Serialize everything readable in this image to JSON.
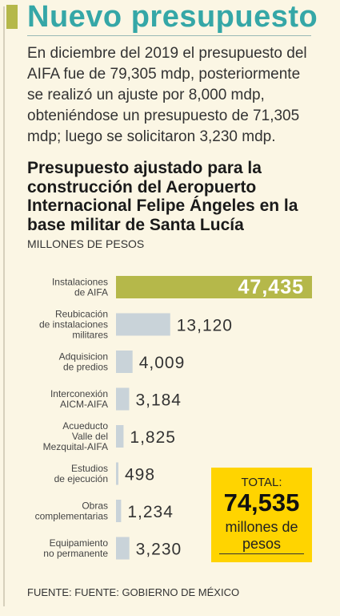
{
  "header": {
    "title": "Nuevo presupuesto",
    "intro": "En diciembre del 2019 el presupuesto del AIFA fue de 79,305 mdp, posteriormente se realizó un ajuste por 8,000 mdp, obteniéndose un presupuesto de 71,305 mdp; luego se solicitaron 3,230 mdp."
  },
  "colors": {
    "accent_green": "#b5b84a",
    "headline_teal": "#35a7a7",
    "bar_gray": "#c9d3d9",
    "total_yellow": "#ffd400"
  },
  "chart_data": {
    "type": "bar",
    "orientation": "horizontal",
    "title": "Presupuesto ajustado para la construcción del Aeropuerto Internacional Felipe Ángeles en la base militar de Santa Lucía",
    "units": "MILLONES DE PESOS",
    "categories": [
      [
        "Instalaciones",
        "de AIFA"
      ],
      [
        "Reubicación",
        "de instalaciones",
        "militares"
      ],
      [
        "Adquisicion",
        "de predios"
      ],
      [
        "Interconexión",
        "AICM-AIFA"
      ],
      [
        "Acueducto",
        "Valle del",
        "Mezquital-AIFA"
      ],
      [
        "Estudios",
        "de ejecución"
      ],
      [
        "Obras",
        "complementarias"
      ],
      [
        "Equipamiento",
        "no permanente"
      ]
    ],
    "values": [
      47435,
      13120,
      4009,
      3184,
      1825,
      498,
      1234,
      3230
    ],
    "value_labels": [
      "47,435",
      "13,120",
      "4,009",
      "3,184",
      "1,825",
      "498",
      "1,234",
      "3,230"
    ]
  },
  "total": {
    "label": "TOTAL:",
    "value": "74,535",
    "unit_line1": "millones de",
    "unit_line2": "pesos"
  },
  "source": "FUENTE: FUENTE: GOBIERNO DE MÉXICO"
}
